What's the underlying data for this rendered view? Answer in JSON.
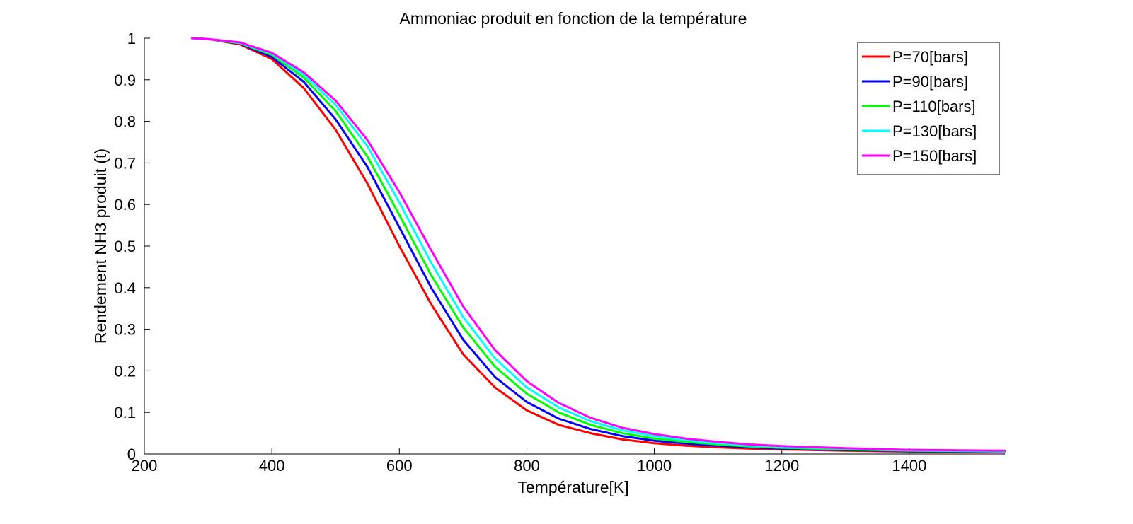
{
  "chart_data": {
    "type": "line",
    "title": "Ammoniac produit en fonction de la température",
    "xlabel": "Température[K]",
    "ylabel": "Rendement NH3 produit (t)",
    "xlim": [
      200,
      1550
    ],
    "ylim": [
      0,
      1
    ],
    "xticks": [
      200,
      400,
      600,
      800,
      1000,
      1200,
      1400
    ],
    "xtick_labels": [
      "200",
      "400",
      "600",
      "800",
      "1000",
      "1200",
      "1400"
    ],
    "yticks": [
      0,
      0.1,
      0.2,
      0.3,
      0.4,
      0.5,
      0.6,
      0.7,
      0.8,
      0.9,
      1
    ],
    "ytick_labels": [
      "0",
      "0.1",
      "0.2",
      "0.3",
      "0.4",
      "0.5",
      "0.6",
      "0.7",
      "0.8",
      "0.9",
      "1"
    ],
    "grid": false,
    "legend_position": "top-right",
    "x": [
      275,
      300,
      350,
      400,
      450,
      500,
      550,
      600,
      650,
      700,
      750,
      800,
      850,
      900,
      950,
      1000,
      1050,
      1100,
      1150,
      1200,
      1300,
      1400,
      1550
    ],
    "series": [
      {
        "name": "P=70[bars]",
        "color": "#ff0000",
        "values": [
          1.0,
          0.998,
          0.985,
          0.95,
          0.88,
          0.78,
          0.65,
          0.5,
          0.36,
          0.24,
          0.16,
          0.105,
          0.07,
          0.05,
          0.035,
          0.026,
          0.02,
          0.016,
          0.013,
          0.011,
          0.008,
          0.006,
          0.004
        ]
      },
      {
        "name": "P=90[bars]",
        "color": "#0000ff",
        "values": [
          1.0,
          0.998,
          0.987,
          0.955,
          0.895,
          0.805,
          0.69,
          0.545,
          0.4,
          0.275,
          0.185,
          0.125,
          0.085,
          0.06,
          0.043,
          0.032,
          0.025,
          0.02,
          0.016,
          0.013,
          0.01,
          0.007,
          0.005
        ]
      },
      {
        "name": "P=110[bars]",
        "color": "#00ff00",
        "values": [
          1.0,
          0.998,
          0.988,
          0.96,
          0.905,
          0.825,
          0.715,
          0.575,
          0.43,
          0.305,
          0.21,
          0.145,
          0.1,
          0.07,
          0.05,
          0.037,
          0.029,
          0.023,
          0.018,
          0.015,
          0.011,
          0.008,
          0.006
        ]
      },
      {
        "name": "P=130[bars]",
        "color": "#00ffff",
        "values": [
          1.0,
          0.998,
          0.989,
          0.963,
          0.912,
          0.84,
          0.74,
          0.605,
          0.46,
          0.33,
          0.23,
          0.16,
          0.112,
          0.079,
          0.057,
          0.043,
          0.033,
          0.026,
          0.021,
          0.017,
          0.013,
          0.009,
          0.007
        ]
      },
      {
        "name": "P=150[bars]",
        "color": "#ff00ff",
        "values": [
          1.0,
          0.998,
          0.99,
          0.965,
          0.918,
          0.85,
          0.755,
          0.63,
          0.49,
          0.355,
          0.25,
          0.175,
          0.123,
          0.087,
          0.063,
          0.048,
          0.037,
          0.029,
          0.023,
          0.019,
          0.014,
          0.01,
          0.008
        ]
      }
    ]
  }
}
